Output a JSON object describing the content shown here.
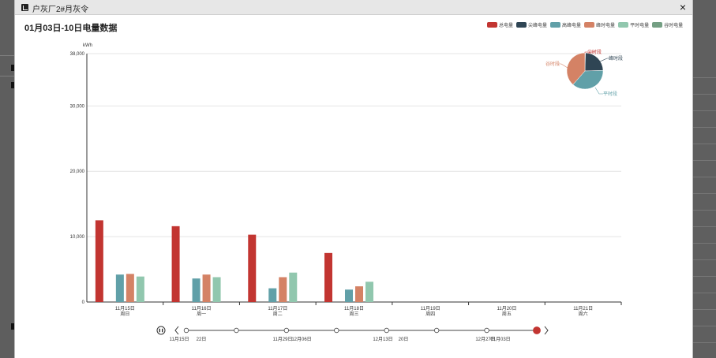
{
  "dialog": {
    "title": "户灰厂2#月灰令",
    "close_label": "×"
  },
  "chart": {
    "title": "01月03日-10日电量数据",
    "yunit": "kWh"
  },
  "colors": {
    "total": "#c23531",
    "peak": "#2f4554",
    "high": "#61a0a8",
    "mid": "#d48265",
    "flat": "#91c7ae",
    "valley": "#749f83"
  },
  "legend": [
    "总电量",
    "尖峰电量",
    "高峰电量",
    "峰时电量",
    "平时电量",
    "谷时电量"
  ],
  "chart_data": {
    "type": "bar",
    "yunit": "kWh",
    "ylim": [
      0,
      38000
    ],
    "yticks": [
      "38,000",
      "30,000",
      "20,000",
      "10,000",
      "0"
    ],
    "categories": [
      {
        "date": "11月15日",
        "weekday": "周日"
      },
      {
        "date": "11月16日",
        "weekday": "周一"
      },
      {
        "date": "11月17日",
        "weekday": "周二"
      },
      {
        "date": "11月18日",
        "weekday": "周三"
      },
      {
        "date": "11月19日",
        "weekday": "周四"
      },
      {
        "date": "11月20日",
        "weekday": "周五"
      },
      {
        "date": "11月21日",
        "weekday": "周六"
      }
    ],
    "series": [
      {
        "name": "总电量",
        "color_key": "total",
        "values": [
          12500,
          11600,
          10300,
          7500,
          null,
          null,
          null
        ]
      },
      {
        "name": "尖峰电量",
        "color_key": "peak",
        "values": [
          null,
          null,
          null,
          null,
          null,
          null,
          null
        ]
      },
      {
        "name": "高峰电量",
        "color_key": "high",
        "values": [
          4200,
          3600,
          2100,
          1900,
          null,
          null,
          null
        ]
      },
      {
        "name": "峰时电量",
        "color_key": "mid",
        "values": [
          4300,
          4200,
          3800,
          2400,
          null,
          null,
          null
        ]
      },
      {
        "name": "平时电量",
        "color_key": "flat",
        "values": [
          3900,
          3800,
          4500,
          3100,
          null,
          null,
          null
        ]
      },
      {
        "name": "谷时电量",
        "color_key": "valley",
        "values": [
          null,
          null,
          null,
          null,
          null,
          null,
          null
        ]
      }
    ],
    "pie": {
      "slices": [
        {
          "label": "尖峰电量",
          "value": 0.5,
          "color_key": "total"
        },
        {
          "label": "峰时电量",
          "value": 24,
          "color_key": "peak"
        },
        {
          "label": "平时电量",
          "value": 37,
          "color_key": "high"
        },
        {
          "label": "谷时电量",
          "value": 38.5,
          "color_key": "mid"
        }
      ],
      "labels": [
        "尖时段",
        "峰时段",
        "平时段",
        "谷时段"
      ]
    }
  },
  "timeline": {
    "labels": [
      "11月15日",
      "22日",
      "11月29日",
      "12月06日",
      "12月13日",
      "20日",
      "12月27日",
      "01月03日"
    ],
    "active_index": 7
  }
}
